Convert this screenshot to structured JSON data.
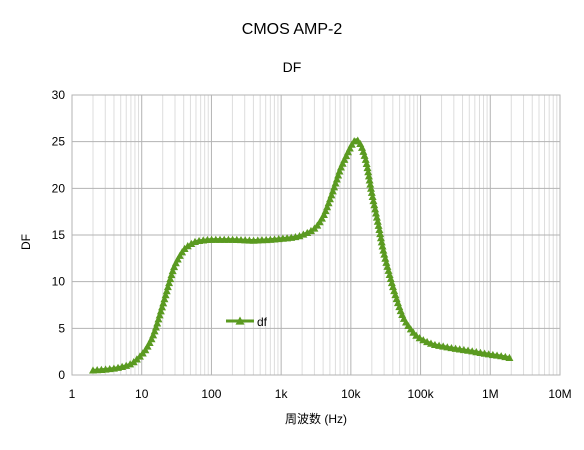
{
  "chart_data": {
    "type": "line",
    "title": "CMOS AMP-2",
    "subtitle": "DF",
    "xlabel": "周波数 (Hz)",
    "ylabel": "DF",
    "x_scale": "log",
    "xlim": [
      1,
      10000000
    ],
    "ylim": [
      0,
      30
    ],
    "x_ticks": [
      {
        "value": 1,
        "label": "1"
      },
      {
        "value": 10,
        "label": "10"
      },
      {
        "value": 100,
        "label": "100"
      },
      {
        "value": 1000,
        "label": "1k"
      },
      {
        "value": 10000,
        "label": "10k"
      },
      {
        "value": 100000,
        "label": "100k"
      },
      {
        "value": 1000000,
        "label": "1M"
      },
      {
        "value": 10000000,
        "label": "10M"
      }
    ],
    "y_ticks": [
      0,
      5,
      10,
      15,
      20,
      25,
      30
    ],
    "grid": true,
    "legend_position": "center-left",
    "marker": "triangle",
    "series": [
      {
        "name": "df",
        "color": "#5a9a20",
        "x": [
          2,
          2.5,
          3,
          4,
          5,
          6,
          7,
          8,
          10,
          12,
          15,
          20,
          25,
          30,
          40,
          50,
          60,
          80,
          100,
          150,
          200,
          300,
          400,
          500,
          700,
          1000,
          1500,
          2000,
          3000,
          4000,
          5000,
          6000,
          7000,
          8000,
          9000,
          10000,
          11000,
          12000,
          13000,
          14000,
          15000,
          17000,
          20000,
          25000,
          30000,
          40000,
          50000,
          60000,
          80000,
          100000,
          150000,
          200000,
          300000,
          500000,
          700000,
          1000000,
          1500000,
          2000000
        ],
        "y": [
          0.5,
          0.55,
          0.6,
          0.7,
          0.85,
          1.0,
          1.2,
          1.5,
          2.2,
          3.0,
          4.5,
          7.5,
          10.0,
          11.8,
          13.4,
          14.0,
          14.3,
          14.45,
          14.5,
          14.5,
          14.5,
          14.45,
          14.4,
          14.45,
          14.5,
          14.6,
          14.75,
          15.0,
          15.7,
          17.0,
          18.8,
          20.5,
          22.0,
          23.0,
          23.8,
          24.5,
          25.0,
          25.2,
          25.0,
          24.6,
          24.0,
          22.5,
          19.5,
          16.0,
          13.0,
          9.5,
          7.2,
          5.8,
          4.5,
          3.9,
          3.3,
          3.1,
          2.85,
          2.6,
          2.4,
          2.2,
          2.0,
          1.8
        ]
      }
    ]
  }
}
